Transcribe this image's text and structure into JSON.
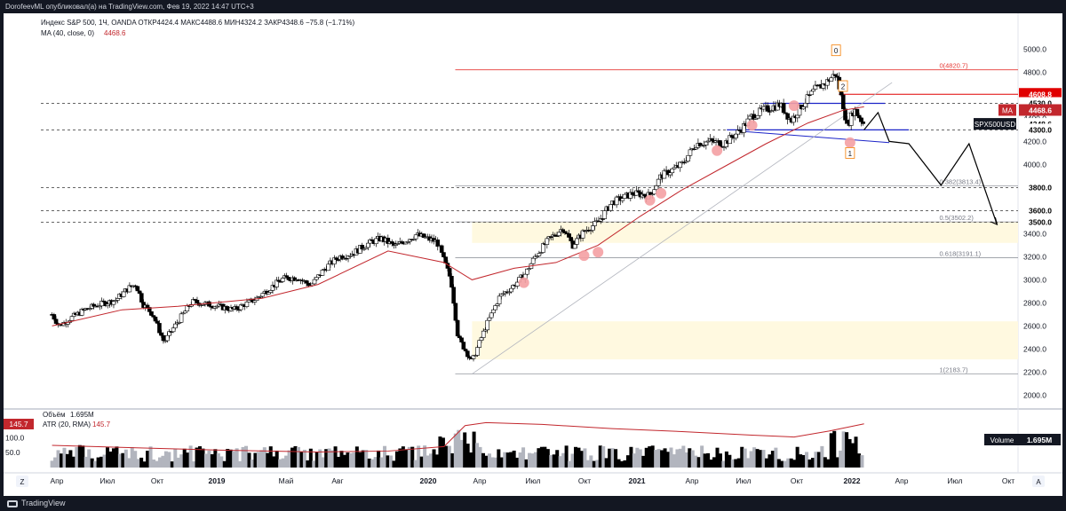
{
  "header": {
    "published_text": "DorofeevML опубликовал(а) на TradingView.com, Фев 19, 2022 14:47 UTC+3",
    "symbol_line": "Индекс S&P 500, 1Ч, OANDA  ОТКР4424.4  МАКС4488.6  МИН4324.2  ЗАКР4348.6  −75.8 (−1.71%)",
    "ma_line_label": "MA (40, close, 0)",
    "ma_line_value": "4468.6",
    "volume_label": "Объём",
    "volume_value": "1.695M",
    "atr_label": "ATR (20, RMA)",
    "atr_value": "145.7"
  },
  "footer": {
    "brand": "TradingView",
    "z_button": "Z",
    "a_button": "A"
  },
  "colors": {
    "up": "#ffffff",
    "down": "#000000",
    "ma": "#c2272d",
    "fib_line": "#9598a1",
    "fib_zero": "#e53935",
    "zone": "#fff9e0",
    "blue_level": "#1c24c8",
    "red_level": "#e00000",
    "pivot": "#f4a0a3"
  },
  "chart_data": {
    "type": "candlestick",
    "title": "Индекс S&P 500, 1Ч, OANDA",
    "y_axis": {
      "ticks": [
        5000,
        4800,
        4600,
        4400,
        4200,
        4000,
        3800,
        3600,
        3400,
        3200,
        3000,
        2800,
        2600,
        2400,
        2200,
        2000
      ],
      "range": [
        1880,
        5080
      ]
    },
    "x_axis": {
      "labels": [
        "Апр",
        "Июл",
        "Окт",
        "2019",
        "Май",
        "Авг",
        "2020",
        "Апр",
        "Июл",
        "Окт",
        "2021",
        "Апр",
        "Июл",
        "Окт",
        "2022",
        "Апр",
        "Июл",
        "Окт"
      ]
    },
    "price_path": [
      [
        2019.0,
        2700
      ],
      [
        2019.05,
        2600
      ],
      [
        2019.15,
        2680
      ],
      [
        2019.25,
        2750
      ],
      [
        2019.35,
        2790
      ],
      [
        2019.45,
        2820
      ],
      [
        2019.55,
        2930
      ],
      [
        2019.6,
        2960
      ],
      [
        2019.65,
        2790
      ],
      [
        2019.72,
        2700
      ],
      [
        2019.8,
        2460
      ],
      [
        2019.9,
        2640
      ],
      [
        2020.0,
        2810
      ],
      [
        2020.15,
        2780
      ],
      [
        2020.3,
        2740
      ],
      [
        2020.45,
        2830
      ],
      [
        2020.55,
        2920
      ],
      [
        2020.65,
        3010
      ],
      [
        2020.75,
        3020
      ],
      [
        2020.85,
        2950
      ],
      [
        2020.95,
        3100
      ],
      [
        2021.05,
        3200
      ],
      [
        2021.15,
        3230
      ],
      [
        2021.25,
        3310
      ],
      [
        2021.35,
        3360
      ],
      [
        2021.45,
        3290
      ],
      [
        2021.6,
        3390
      ],
      [
        2021.75,
        3330
      ],
      [
        2021.85,
        3000
      ],
      [
        2021.9,
        2500
      ],
      [
        2022.0,
        2290
      ],
      [
        2022.1,
        2600
      ],
      [
        2022.2,
        2860
      ],
      [
        2022.28,
        2930
      ],
      [
        2022.38,
        3050
      ],
      [
        2022.45,
        3200
      ],
      [
        2022.55,
        3350
      ],
      [
        2022.65,
        3450
      ],
      [
        2022.72,
        3300
      ],
      [
        2022.8,
        3420
      ],
      [
        2022.9,
        3500
      ],
      [
        2023.0,
        3670
      ],
      [
        2023.15,
        3750
      ],
      [
        2023.27,
        3730
      ],
      [
        2023.35,
        3900
      ],
      [
        2023.5,
        4000
      ],
      [
        2023.6,
        4180
      ],
      [
        2023.7,
        4200
      ],
      [
        2023.8,
        4180
      ],
      [
        2023.92,
        4300
      ],
      [
        2024.0,
        4420
      ],
      [
        2024.1,
        4480
      ],
      [
        2024.2,
        4520
      ],
      [
        2024.28,
        4380
      ],
      [
        2024.35,
        4500
      ],
      [
        2024.45,
        4650
      ],
      [
        2024.52,
        4700
      ],
      [
        2024.6,
        4790
      ],
      [
        2024.65,
        4520
      ],
      [
        2024.68,
        4330
      ],
      [
        2024.73,
        4480
      ],
      [
        2024.8,
        4348
      ]
    ],
    "ma": {
      "name": "MA",
      "period": 40,
      "last": 4468.6,
      "points": [
        [
          2019.0,
          2600
        ],
        [
          2019.5,
          2740
        ],
        [
          2019.9,
          2770
        ],
        [
          2020.5,
          2840
        ],
        [
          2020.9,
          2960
        ],
        [
          2021.4,
          3250
        ],
        [
          2021.8,
          3150
        ],
        [
          2022.0,
          3000
        ],
        [
          2022.3,
          3100
        ],
        [
          2022.6,
          3150
        ],
        [
          2022.9,
          3300
        ],
        [
          2023.2,
          3550
        ],
        [
          2023.5,
          3780
        ],
        [
          2023.8,
          3980
        ],
        [
          2024.1,
          4180
        ],
        [
          2024.4,
          4360
        ],
        [
          2024.65,
          4470
        ],
        [
          2024.8,
          4500
        ]
      ]
    },
    "fib_levels": [
      {
        "label": "0(4820.7)",
        "value": 4820.7
      },
      {
        "label": "0.382(3813.4)",
        "value": 3813.4
      },
      {
        "label": "0.5(3502.2)",
        "value": 3502.2
      },
      {
        "label": "0.618(3191.1)",
        "value": 3191.1
      },
      {
        "label": "1(2183.7)",
        "value": 2183.7
      }
    ],
    "zones": [
      [
        3320,
        3502.2
      ],
      [
        2310,
        2640
      ]
    ],
    "horizontal_levels": [
      4530,
      4300,
      3800,
      3600,
      3500
    ],
    "price_labels": [
      "4608.8",
      "4530.0",
      "4300.0",
      "3800.0",
      "3600.0",
      "3500.0"
    ],
    "ma_label": "MA",
    "ma_tag_value": "4468.6",
    "symbol_tag": "SPX500USD",
    "symbol_tag_value": "4348.6",
    "wave_labels": [
      "0",
      "1",
      "2"
    ],
    "forecast_path": [
      [
        2024.8,
        4300
      ],
      [
        2024.9,
        4450
      ],
      [
        2024.98,
        4200
      ],
      [
        2025.12,
        4180
      ],
      [
        2025.35,
        3820
      ],
      [
        2025.55,
        4180
      ],
      [
        2025.75,
        3480
      ]
    ],
    "volume": {
      "label": "Volume",
      "value": "1.695M",
      "ticks": [
        "100.0",
        "50.0"
      ],
      "axis_labels": [
        "145.7"
      ]
    },
    "atr": {
      "name": "ATR",
      "value": 145.7
    }
  }
}
